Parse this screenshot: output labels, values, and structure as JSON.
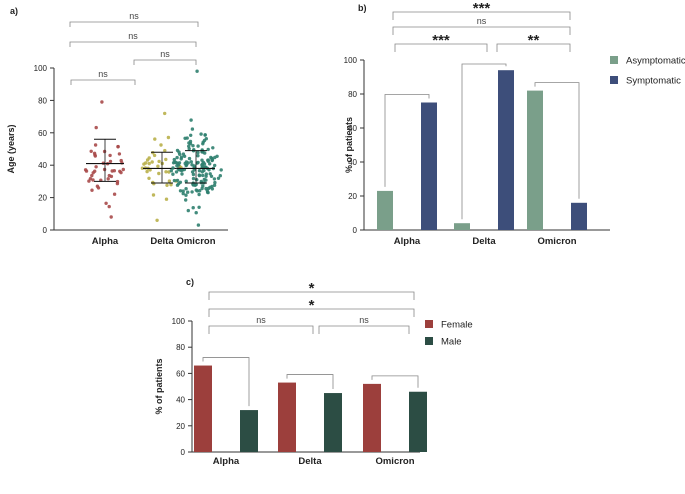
{
  "chart_data": [
    {
      "id": "a",
      "type": "scatter",
      "panel_label": "a)",
      "title": "",
      "xlabel": "",
      "ylabel": "Age (years)",
      "ylim": [
        0,
        100
      ],
      "yticks": [
        0,
        20,
        40,
        60,
        80,
        100
      ],
      "categories": [
        "Alpha",
        "Delta",
        "Omicron"
      ],
      "colors": [
        "#a94a4a",
        "#b9b04a",
        "#2f7f6f"
      ],
      "n_points": [
        45,
        38,
        160
      ],
      "ranges": [
        [
          8,
          79
        ],
        [
          6,
          72
        ],
        [
          3,
          98
        ]
      ],
      "mean": [
        41,
        38,
        38
      ],
      "sd_lower": [
        30,
        29,
        29
      ],
      "sd_upper": [
        56,
        48,
        49
      ],
      "significance": [
        {
          "from": 0,
          "to": 2,
          "label": "ns",
          "level": 3
        },
        {
          "from": 0,
          "to": 2,
          "label": "ns",
          "level": 2
        },
        {
          "from": 1,
          "to": 2,
          "label": "ns",
          "level": 1
        },
        {
          "from": 0,
          "to": 1,
          "label": "ns",
          "level": 0
        }
      ]
    },
    {
      "id": "b",
      "type": "bar",
      "panel_label": "b)",
      "xlabel": "",
      "ylabel": "% of patients",
      "ylim": [
        0,
        100
      ],
      "yticks": [
        0,
        20,
        40,
        60,
        80,
        100
      ],
      "categories": [
        "Alpha",
        "Delta",
        "Omicron"
      ],
      "series": [
        {
          "name": "Asymptomatic",
          "color": "#7a9f8a",
          "values": [
            23,
            4,
            82
          ]
        },
        {
          "name": "Symptomatic",
          "color": "#3d4e7a",
          "values": [
            75,
            94,
            16
          ]
        }
      ],
      "legend_position": "right",
      "significance": [
        {
          "from": 0,
          "to": 2,
          "label": "***",
          "level": 3
        },
        {
          "from": 0,
          "to": 2,
          "label": "ns",
          "level": 2
        },
        {
          "from": 0,
          "to": 1,
          "label": "***",
          "level": 1
        },
        {
          "from": 1,
          "to": 2,
          "label": "**",
          "level": 1
        }
      ]
    },
    {
      "id": "c",
      "type": "bar",
      "panel_label": "c)",
      "xlabel": "",
      "ylabel": "% of patients",
      "ylim": [
        0,
        100
      ],
      "yticks": [
        0,
        20,
        40,
        60,
        80,
        100
      ],
      "categories": [
        "Alpha",
        "Delta",
        "Omicron"
      ],
      "series": [
        {
          "name": "Female",
          "color": "#9c3f3c",
          "values": [
            66,
            53,
            52
          ]
        },
        {
          "name": "Male",
          "color": "#2c4d44",
          "values": [
            32,
            45,
            46
          ]
        }
      ],
      "legend_position": "right",
      "significance": [
        {
          "from": 0,
          "to": 2,
          "label": "*",
          "level": 3
        },
        {
          "from": 0,
          "to": 2,
          "label": "*",
          "level": 2
        },
        {
          "from": 0,
          "to": 1,
          "label": "ns",
          "level": 1
        },
        {
          "from": 1,
          "to": 2,
          "label": "ns",
          "level": 1
        }
      ]
    }
  ]
}
